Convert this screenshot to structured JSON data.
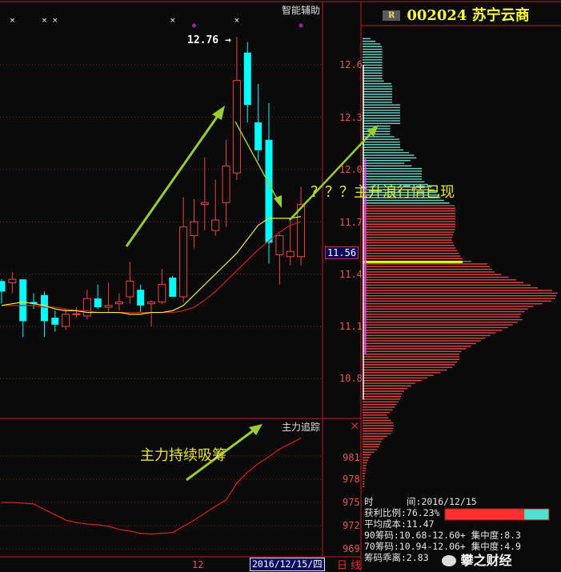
{
  "header": {
    "badge": "R",
    "code": "002024",
    "name": "苏宁云商"
  },
  "main_panel": {
    "indicator_label": "智能辅助",
    "high_label": "12.76",
    "high_arrow": "→",
    "current_price_label": "11.56",
    "annotation": "？？？主升浪行情已现",
    "marker_symbol": "×"
  },
  "sub_panel": {
    "title": "主力追踪",
    "close_symbol": "×",
    "annotation": "主力持续吸筹"
  },
  "bottom_bar": {
    "x_tick": "12",
    "date": "2016/12/15/四",
    "period": "日 线"
  },
  "chip_info": {
    "date_label": "时      间:2016/12/15",
    "profit_ratio": "获利比例:76.23%",
    "avg_cost": "平均成本:11.47",
    "chip90": "90筹码:10.68-12.60+ 集中度:8.3",
    "chip70": "70筹码:10.94-12.06+ 集中度:4.9",
    "deviation": "筹码乖离:2.83",
    "profit_fraction": 0.7623
  },
  "watermark": "攀之财经",
  "colors": {
    "up": "#e84848",
    "down": "#00ffff",
    "ma_short": "#f0f040",
    "ma_long": "#d02020",
    "profit_chip": "#70d8c8",
    "loss_chip": "#e04848",
    "avg_cost_line": "#ffff00",
    "arrow": "#9acd32"
  },
  "chart_data": [
    {
      "type": "candlestick",
      "yticks": [
        "12.6",
        "12.3",
        "12.0",
        "11.7",
        "11.4",
        "11.1",
        "10.8"
      ],
      "ylim": [
        10.6,
        12.9
      ],
      "grid": true,
      "candles": [
        {
          "o": 11.36,
          "h": 11.37,
          "l": 11.23,
          "c": 11.3
        },
        {
          "o": 11.35,
          "h": 11.41,
          "l": 11.29,
          "c": 11.37
        },
        {
          "o": 11.37,
          "h": 11.37,
          "l": 11.04,
          "c": 11.13
        },
        {
          "o": 11.24,
          "h": 11.29,
          "l": 11.2,
          "c": 11.23
        },
        {
          "o": 11.28,
          "h": 11.3,
          "l": 11.04,
          "c": 11.13
        },
        {
          "o": 11.15,
          "h": 11.19,
          "l": 11.07,
          "c": 11.11
        },
        {
          "o": 11.1,
          "h": 11.2,
          "l": 11.08,
          "c": 11.17
        },
        {
          "o": 11.17,
          "h": 11.21,
          "l": 11.15,
          "c": 11.17
        },
        {
          "o": 11.16,
          "h": 11.31,
          "l": 11.14,
          "c": 11.26
        },
        {
          "o": 11.26,
          "h": 11.34,
          "l": 11.2,
          "c": 11.21
        },
        {
          "o": 11.21,
          "h": 11.35,
          "l": 11.18,
          "c": 11.22
        },
        {
          "o": 11.23,
          "h": 11.29,
          "l": 11.19,
          "c": 11.24
        },
        {
          "o": 11.27,
          "h": 11.47,
          "l": 11.23,
          "c": 11.36
        },
        {
          "o": 11.31,
          "h": 11.34,
          "l": 11.18,
          "c": 11.22
        },
        {
          "o": 11.23,
          "h": 11.25,
          "l": 11.1,
          "c": 11.24
        },
        {
          "o": 11.24,
          "h": 11.43,
          "l": 11.23,
          "c": 11.34
        },
        {
          "o": 11.38,
          "h": 11.39,
          "l": 11.27,
          "c": 11.27
        },
        {
          "o": 11.27,
          "h": 11.84,
          "l": 11.24,
          "c": 11.67
        },
        {
          "o": 11.62,
          "h": 11.83,
          "l": 11.55,
          "c": 11.7
        },
        {
          "o": 11.8,
          "h": 12.07,
          "l": 11.65,
          "c": 11.81
        },
        {
          "o": 11.65,
          "h": 11.94,
          "l": 11.62,
          "c": 11.71
        },
        {
          "o": 11.81,
          "h": 12.17,
          "l": 11.67,
          "c": 12.02
        },
        {
          "o": 11.98,
          "h": 12.76,
          "l": 11.94,
          "c": 12.51
        },
        {
          "o": 12.67,
          "h": 12.73,
          "l": 12.27,
          "c": 12.37
        },
        {
          "o": 12.27,
          "h": 12.49,
          "l": 12.05,
          "c": 12.11
        },
        {
          "o": 12.17,
          "h": 12.38,
          "l": 11.46,
          "c": 11.58
        },
        {
          "o": 11.51,
          "h": 11.63,
          "l": 11.34,
          "c": 11.62
        },
        {
          "o": 11.5,
          "h": 11.72,
          "l": 11.45,
          "c": 11.53
        },
        {
          "o": 11.5,
          "h": 11.9,
          "l": 11.45,
          "c": 11.8
        }
      ],
      "ma_short": [
        11.22,
        11.23,
        11.24,
        11.23,
        11.22,
        11.2,
        11.19,
        11.19,
        11.18,
        11.18,
        11.18,
        11.18,
        11.17,
        11.17,
        11.18,
        11.18,
        11.19,
        11.22,
        11.28,
        11.34,
        11.4,
        11.46,
        11.52,
        11.6,
        11.68,
        11.72,
        11.72,
        11.72,
        11.73
      ],
      "ma_long": [
        11.22,
        11.22,
        11.22,
        11.22,
        11.21,
        11.21,
        11.2,
        11.19,
        11.19,
        11.18,
        11.18,
        11.18,
        11.18,
        11.18,
        11.18,
        11.18,
        11.18,
        11.19,
        11.21,
        11.25,
        11.3,
        11.36,
        11.42,
        11.48,
        11.54,
        11.59,
        11.64,
        11.68,
        11.7
      ],
      "top_markers": [
        {
          "index": 1,
          "kind": "x"
        },
        {
          "index": 4,
          "kind": "x"
        },
        {
          "index": 5,
          "kind": "x"
        },
        {
          "index": 16,
          "kind": "x"
        },
        {
          "index": 18,
          "kind": "dot"
        },
        {
          "index": 22,
          "kind": "x"
        },
        {
          "index": 28,
          "kind": "dot"
        }
      ]
    },
    {
      "type": "line",
      "title": "主力追踪",
      "yticks": [
        "981",
        "978",
        "975",
        "972",
        "969"
      ],
      "ylim": [
        968,
        985
      ],
      "grid": true,
      "values": [
        975.0,
        975.0,
        974.9,
        974.8,
        974.1,
        973.4,
        972.7,
        972.4,
        972.2,
        972.1,
        971.9,
        971.5,
        971.3,
        971.0,
        970.9,
        971.0,
        971.1,
        971.9,
        972.7,
        973.6,
        974.5,
        975.3,
        977.5,
        978.9,
        980.0,
        980.9,
        981.9,
        982.6,
        983.3
      ]
    },
    {
      "type": "bar",
      "orientation": "horizontal",
      "description_free": true,
      "profile": [
        [
          12.75,
          4
        ],
        [
          12.72,
          9
        ],
        [
          12.7,
          10
        ],
        [
          12.51,
          10
        ],
        [
          12.49,
          15
        ],
        [
          12.38,
          15
        ],
        [
          12.37,
          19
        ],
        [
          12.26,
          19
        ],
        [
          12.25,
          14
        ],
        [
          12.2,
          14
        ],
        [
          12.17,
          19
        ],
        [
          12.12,
          19
        ],
        [
          12.1,
          23
        ],
        [
          12.07,
          28
        ],
        [
          12.03,
          20
        ],
        [
          12.01,
          30
        ],
        [
          11.94,
          30
        ],
        [
          11.89,
          36
        ],
        [
          11.83,
          40
        ],
        [
          11.79,
          47
        ],
        [
          11.66,
          47
        ],
        [
          11.6,
          45
        ],
        [
          11.55,
          47
        ],
        [
          11.48,
          51
        ],
        [
          11.46,
          63
        ],
        [
          11.41,
          67
        ],
        [
          11.37,
          77
        ],
        [
          11.32,
          89
        ],
        [
          11.3,
          99
        ],
        [
          11.25,
          97
        ],
        [
          11.21,
          85
        ],
        [
          11.16,
          79
        ],
        [
          11.14,
          81
        ],
        [
          11.09,
          73
        ],
        [
          11.05,
          65
        ],
        [
          11.0,
          57
        ],
        [
          10.95,
          49
        ],
        [
          10.91,
          49
        ],
        [
          10.86,
          45
        ],
        [
          10.82,
          36
        ],
        [
          10.77,
          26
        ],
        [
          10.72,
          20
        ],
        [
          10.68,
          19
        ],
        [
          10.63,
          16
        ],
        [
          10.59,
          12
        ],
        [
          10.54,
          16
        ],
        [
          10.49,
          15
        ],
        [
          10.45,
          10
        ],
        [
          10.4,
          8
        ],
        [
          10.36,
          4
        ],
        [
          10.31,
          2
        ],
        [
          10.22,
          1
        ],
        [
          10.17,
          1
        ]
      ],
      "profit_below_price": 11.8,
      "avg_cost": 11.47,
      "range_90": [
        10.68,
        12.6
      ],
      "range_70": [
        10.94,
        12.06
      ]
    }
  ]
}
